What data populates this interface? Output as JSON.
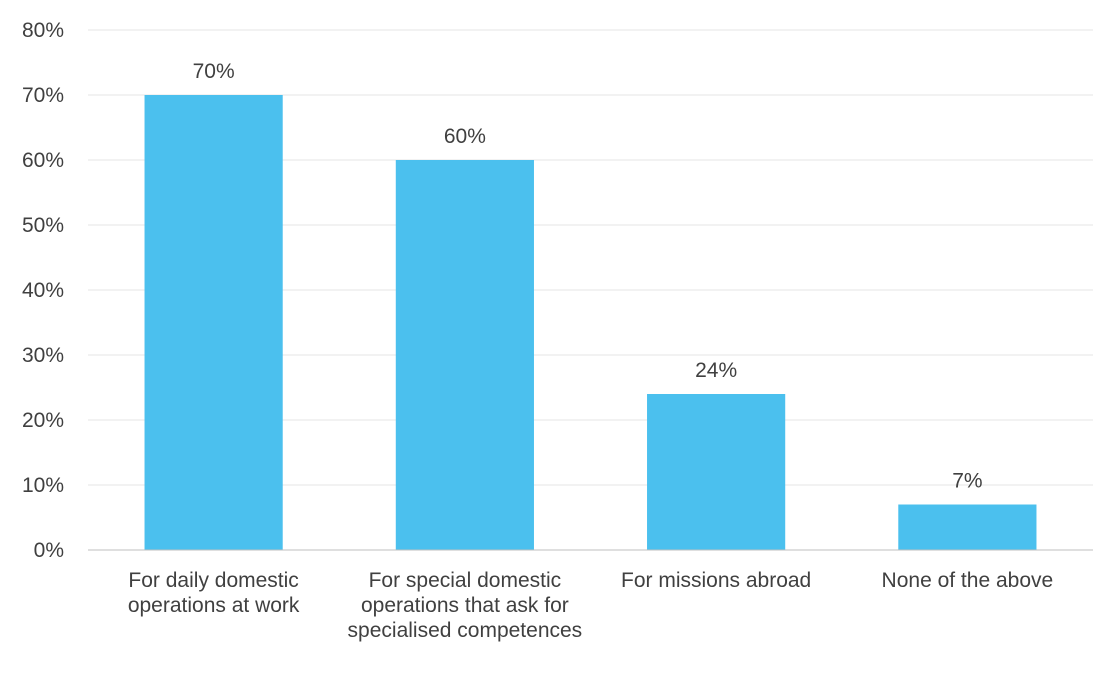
{
  "chart_data": {
    "type": "bar",
    "categories": [
      "For daily domestic operations at work",
      "For special domestic operations that ask for specialised competences",
      "For missions abroad",
      "None of the above"
    ],
    "values": [
      70,
      60,
      24,
      7
    ],
    "value_labels": [
      "70%",
      "60%",
      "24%",
      "7%"
    ],
    "title": "",
    "xlabel": "",
    "ylabel": "",
    "ylim": [
      0,
      80
    ],
    "yticks": [
      "0%",
      "10%",
      "20%",
      "30%",
      "40%",
      "50%",
      "60%",
      "70%",
      "80%"
    ],
    "grid": true,
    "legend": "none",
    "colors": {
      "bar": "#4bc0ee",
      "grid": "#e6e6e6",
      "axis": "#bfbfbf",
      "text": "#404040"
    }
  }
}
